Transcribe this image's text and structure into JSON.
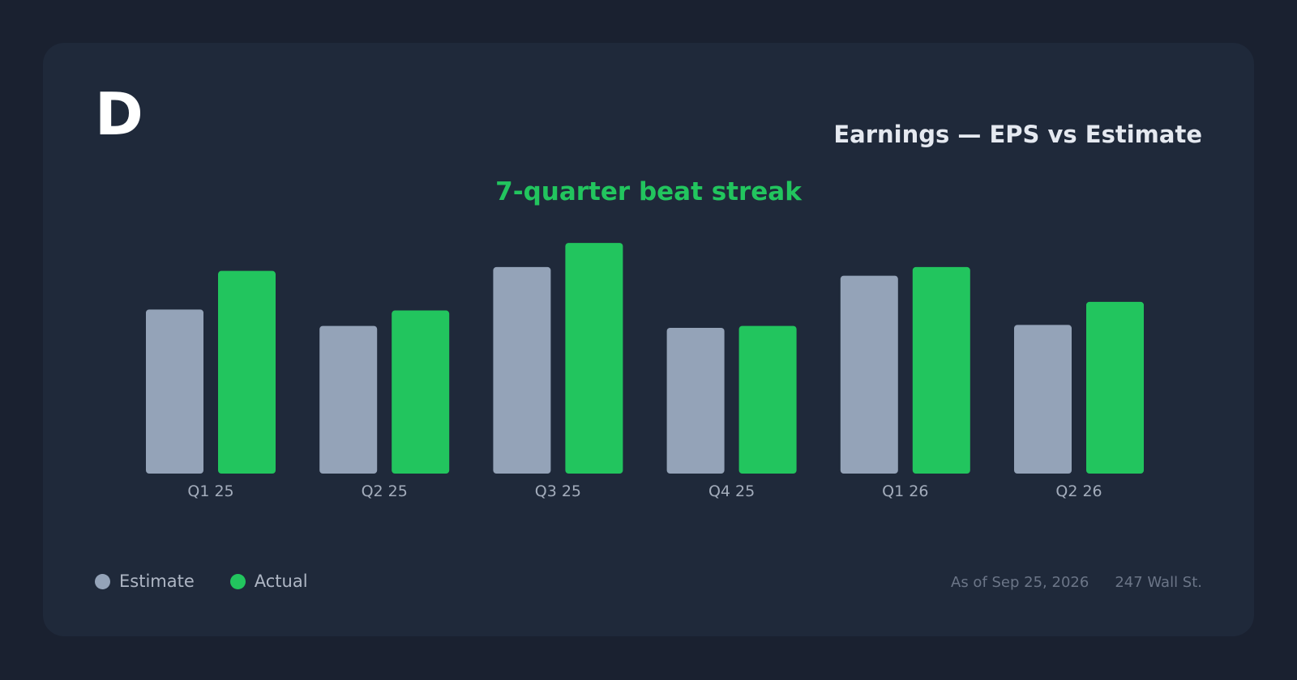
{
  "brand": {
    "logo_text": "D"
  },
  "header": {
    "title": "Earnings — EPS vs Estimate",
    "subtitle": "7-quarter beat streak"
  },
  "legend": [
    {
      "label": "Estimate",
      "color": "#94a3b8"
    },
    {
      "label": "Actual",
      "color": "#22c55e"
    }
  ],
  "footer": {
    "as_of": "As of Sep 25, 2026",
    "source": "247 Wall St."
  },
  "chart_data": {
    "type": "bar",
    "categories": [
      "Q1 25",
      "Q2 25",
      "Q3 25",
      "Q4 25",
      "Q1 26",
      "Q2 26"
    ],
    "series": [
      {
        "name": "Estimate",
        "color": "#94a3b8",
        "values": [
          1.7,
          1.53,
          2.14,
          1.51,
          2.05,
          1.54
        ]
      },
      {
        "name": "Actual",
        "color": "#22c55e",
        "values": [
          2.1,
          1.69,
          2.39,
          1.53,
          2.14,
          1.78
        ]
      }
    ],
    "ylim": [
      0,
      2.5
    ],
    "grid": false,
    "legend_position": "bottom-left"
  }
}
